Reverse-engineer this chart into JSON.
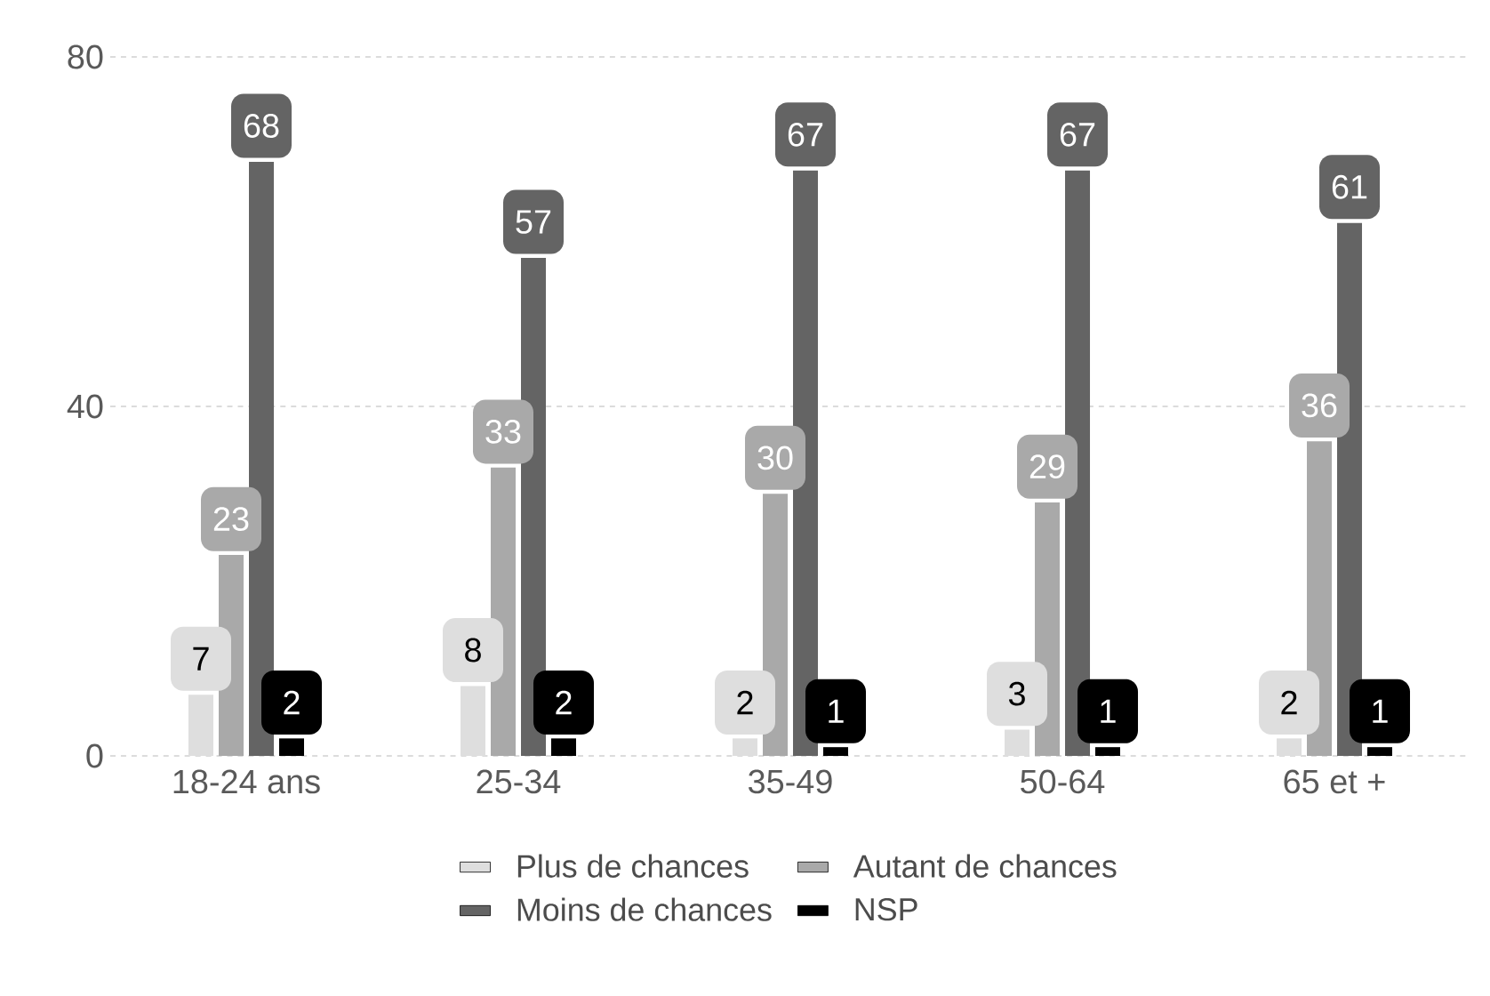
{
  "chart_data": {
    "type": "bar",
    "categories": [
      "18-24 ans",
      "25-34",
      "35-49",
      "50-64",
      "65 et +"
    ],
    "series": [
      {
        "name": "Plus de chances",
        "color": "#dedede",
        "values": [
          7,
          8,
          2,
          3,
          2
        ]
      },
      {
        "name": "Autant de chances",
        "color": "#a9a9a9",
        "values": [
          23,
          33,
          30,
          29,
          36
        ]
      },
      {
        "name": "Moins de chances",
        "color": "#646464",
        "values": [
          68,
          57,
          67,
          67,
          61
        ]
      },
      {
        "name": "NSP",
        "color": "#000000",
        "values": [
          2,
          2,
          1,
          1,
          1
        ]
      }
    ],
    "ylim": [
      0,
      80
    ],
    "yticks": [
      0,
      40,
      80
    ],
    "grid": "y",
    "legend": "bottom",
    "data_labels": true
  }
}
